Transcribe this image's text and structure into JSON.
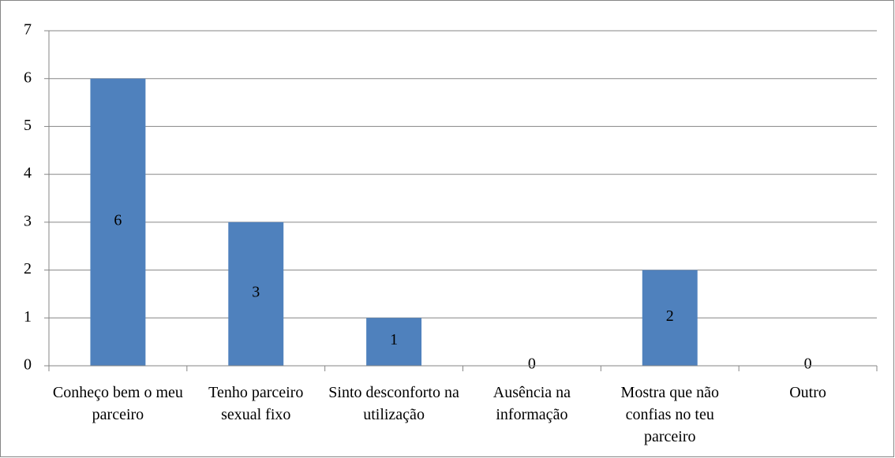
{
  "chart_data": {
    "type": "bar",
    "categories": [
      "Conheço bem o meu parceiro",
      "Tenho parceiro sexual fixo",
      "Sinto desconforto na utilização",
      "Ausência na informação",
      "Mostra que não confias no teu parceiro",
      "Outro"
    ],
    "values": [
      6,
      3,
      1,
      0,
      2,
      0
    ],
    "color": "#4f81bd",
    "ylim": [
      0,
      7
    ],
    "yticks": [
      0,
      1,
      2,
      3,
      4,
      5,
      6,
      7
    ],
    "grid": true
  }
}
